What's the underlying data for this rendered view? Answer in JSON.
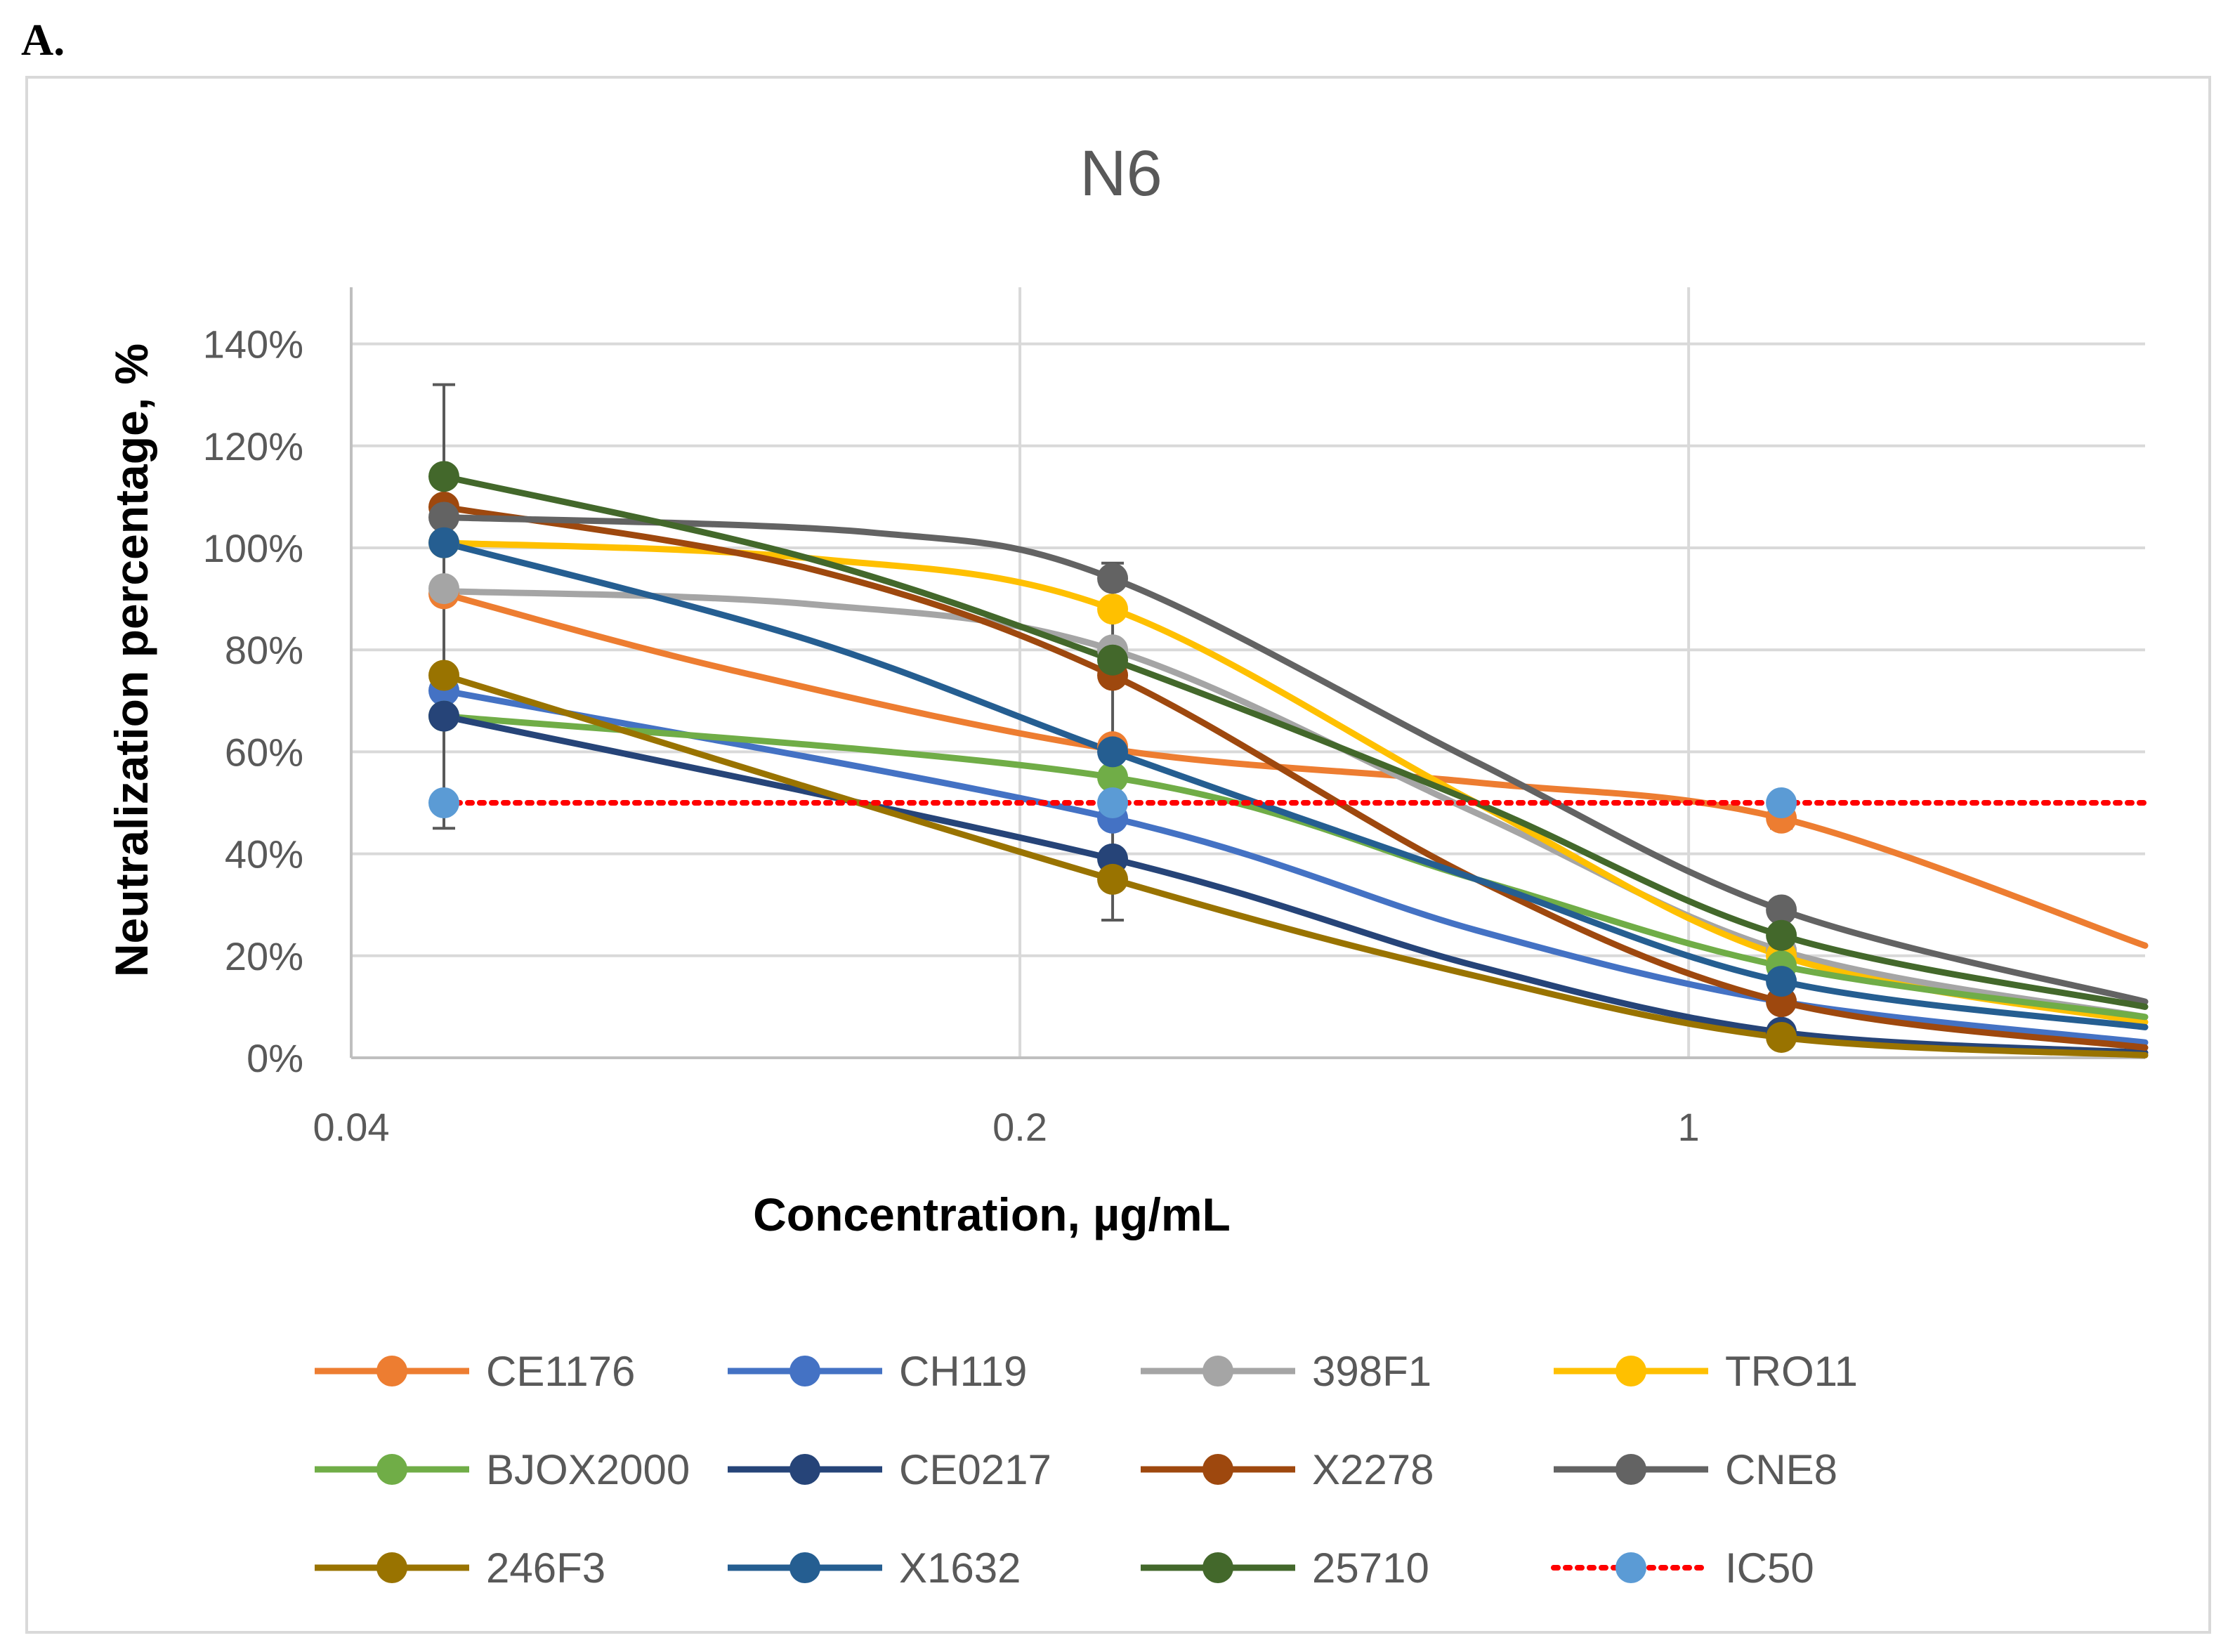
{
  "panel_label": "A.",
  "chart_data": {
    "type": "line",
    "title": "N6",
    "xlabel": "Concentration, µg/mL",
    "ylabel": "Neutralization percentage, %",
    "xscale": "log",
    "xlim": [
      0.04,
      3.0
    ],
    "ylim": [
      0,
      150
    ],
    "x_ticks": [
      0.04,
      0.2,
      1
    ],
    "x_tick_labels": [
      "0.04",
      "0.2",
      "1"
    ],
    "y_ticks": [
      0,
      20,
      40,
      60,
      80,
      100,
      120,
      140
    ],
    "y_tick_labels": [
      "0%",
      "20%",
      "40%",
      "60%",
      "80%",
      "100%",
      "120%",
      "140%"
    ],
    "grid": true,
    "legend_position": "bottom",
    "x": [
      0.05,
      0.25,
      1.25
    ],
    "series": [
      {
        "name": "CE1176",
        "color": "#ED7D31",
        "values": [
          91,
          61,
          47
        ],
        "fit": [
          [
            0.05,
            91
          ],
          [
            0.1,
            76
          ],
          [
            0.25,
            60.5
          ],
          [
            0.6,
            54
          ],
          [
            1.25,
            47
          ],
          [
            3.0,
            22
          ]
        ]
      },
      {
        "name": "CH119",
        "color": "#4472C4",
        "values": [
          72,
          47,
          11
        ],
        "fit": [
          [
            0.05,
            72
          ],
          [
            0.25,
            47
          ],
          [
            0.6,
            25
          ],
          [
            1.25,
            11
          ],
          [
            3.0,
            3
          ]
        ]
      },
      {
        "name": "398F1",
        "color": "#A5A5A5",
        "values": [
          92,
          80,
          21
        ],
        "fit": [
          [
            0.05,
            91.5
          ],
          [
            0.12,
            89
          ],
          [
            0.25,
            80
          ],
          [
            0.6,
            48
          ],
          [
            1.25,
            21
          ],
          [
            3.0,
            8
          ]
        ]
      },
      {
        "name": "TRO11",
        "color": "#FFC000",
        "values": [
          101,
          88,
          20
        ],
        "fit": [
          [
            0.05,
            101
          ],
          [
            0.12,
            98
          ],
          [
            0.25,
            88
          ],
          [
            0.6,
            50
          ],
          [
            1.25,
            20
          ],
          [
            3.0,
            7
          ]
        ]
      },
      {
        "name": "BJOX2000",
        "color": "#70AD47",
        "values": [
          67,
          55,
          18
        ],
        "fit": [
          [
            0.05,
            67
          ],
          [
            0.25,
            55
          ],
          [
            0.6,
            35
          ],
          [
            1.25,
            18
          ],
          [
            3.0,
            8
          ]
        ]
      },
      {
        "name": "CE0217",
        "color": "#264478",
        "values": [
          67,
          39,
          5
        ],
        "fit": [
          [
            0.05,
            67
          ],
          [
            0.25,
            39
          ],
          [
            0.6,
            18
          ],
          [
            1.25,
            5
          ],
          [
            3.0,
            1
          ]
        ]
      },
      {
        "name": "X2278",
        "color": "#9E480E",
        "values": [
          108,
          75,
          11
        ],
        "fit": [
          [
            0.05,
            108
          ],
          [
            0.12,
            96
          ],
          [
            0.25,
            75
          ],
          [
            0.6,
            35
          ],
          [
            1.25,
            11
          ],
          [
            3.0,
            2
          ]
        ]
      },
      {
        "name": "CNE8",
        "color": "#636363",
        "values": [
          106,
          94,
          29
        ],
        "fit": [
          [
            0.05,
            106
          ],
          [
            0.14,
            103
          ],
          [
            0.25,
            94
          ],
          [
            0.6,
            58
          ],
          [
            1.25,
            29
          ],
          [
            3.0,
            11
          ]
        ]
      },
      {
        "name": "246F3",
        "color": "#997300",
        "values": [
          75,
          35,
          4
        ],
        "fit": [
          [
            0.05,
            75
          ],
          [
            0.25,
            35
          ],
          [
            0.6,
            16
          ],
          [
            1.25,
            4
          ],
          [
            3.0,
            0.5
          ]
        ]
      },
      {
        "name": "X1632",
        "color": "#255E91",
        "values": [
          101,
          60,
          15
        ],
        "fit": [
          [
            0.05,
            101
          ],
          [
            0.12,
            82
          ],
          [
            0.25,
            60
          ],
          [
            0.6,
            35
          ],
          [
            1.25,
            15
          ],
          [
            3.0,
            6
          ]
        ]
      },
      {
        "name": "25710",
        "color": "#43682B",
        "values": [
          114,
          78,
          24
        ],
        "fit": [
          [
            0.05,
            114
          ],
          [
            0.12,
            98
          ],
          [
            0.25,
            78
          ],
          [
            0.6,
            50
          ],
          [
            1.25,
            24
          ],
          [
            3.0,
            10
          ]
        ]
      }
    ],
    "error_bars": [
      {
        "x": 0.05,
        "low": 45,
        "high": 132
      },
      {
        "x": 0.25,
        "low": 27,
        "high": 97
      },
      {
        "x": 1.25,
        "low": 45,
        "high": 49
      }
    ],
    "ic50": {
      "name": "IC50",
      "color": "#FF0000",
      "marker_color": "#5B9BD5",
      "value": 50,
      "points_x": [
        0.05,
        0.25,
        1.25
      ]
    },
    "legend": [
      "CE1176",
      "CH119",
      "398F1",
      "TRO11",
      "BJOX2000",
      "CE0217",
      "X2278",
      "CNE8",
      "246F3",
      "X1632",
      "25710",
      "IC50"
    ]
  }
}
